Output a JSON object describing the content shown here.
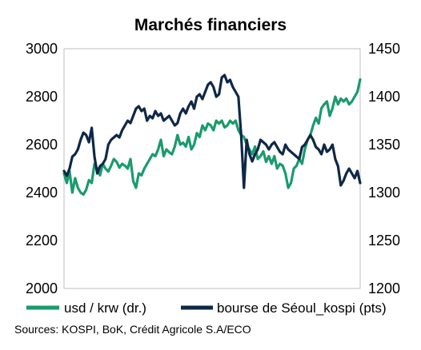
{
  "chart_data": {
    "type": "line",
    "title": "Marchés financiers",
    "source": "Sources: KOSPI, BoK, Crédit Agricole S.A/ECO",
    "left_axis": {
      "min": 2000,
      "max": 3000,
      "ticks": [
        "3000",
        "2800",
        "2600",
        "2400",
        "2200",
        "2000"
      ]
    },
    "right_axis": {
      "min": 1200,
      "max": 1450,
      "ticks": [
        "1450",
        "1400",
        "1350",
        "1300",
        "1250",
        "1200"
      ]
    },
    "grid": false,
    "legend_position": "bottom",
    "series": [
      {
        "name": "usd / krw (dr.)",
        "axis": "right",
        "color": "#1a9b6c",
        "values": [
          1320,
          1310,
          1322,
          1300,
          1315,
          1305,
          1300,
          1298,
          1303,
          1313,
          1310,
          1330,
          1325,
          1318,
          1330,
          1325,
          1322,
          1328,
          1335,
          1332,
          1326,
          1330,
          1328,
          1325,
          1335,
          1312,
          1305,
          1320,
          1318,
          1325,
          1330,
          1335,
          1340,
          1338,
          1345,
          1355,
          1338,
          1345,
          1342,
          1340,
          1348,
          1360,
          1350,
          1352,
          1348,
          1358,
          1345,
          1350,
          1362,
          1358,
          1370,
          1365,
          1372,
          1370,
          1365,
          1375,
          1372,
          1375,
          1368,
          1370,
          1375,
          1372,
          1375,
          1365,
          1360,
          1358,
          1350,
          1345,
          1340,
          1348,
          1335,
          1338,
          1343,
          1332,
          1338,
          1330,
          1338,
          1325,
          1330,
          1328,
          1320,
          1305,
          1310,
          1325,
          1328,
          1335,
          1330,
          1345,
          1355,
          1360,
          1370,
          1378,
          1372,
          1388,
          1392,
          1395,
          1380,
          1388,
          1400,
          1392,
          1398,
          1395,
          1398,
          1392,
          1395,
          1400,
          1405,
          1418
        ]
      },
      {
        "name": "bourse de Séoul_kospi (pts)",
        "axis": "left",
        "color": "#0f2847",
        "values": [
          2490,
          2470,
          2500,
          2550,
          2560,
          2580,
          2620,
          2650,
          2640,
          2610,
          2670,
          2550,
          2480,
          2510,
          2520,
          2540,
          2600,
          2620,
          2630,
          2640,
          2630,
          2660,
          2680,
          2700,
          2690,
          2720,
          2750,
          2760,
          2740,
          2750,
          2700,
          2720,
          2710,
          2740,
          2720,
          2730,
          2700,
          2710,
          2720,
          2700,
          2680,
          2690,
          2730,
          2750,
          2730,
          2760,
          2780,
          2750,
          2800,
          2810,
          2790,
          2820,
          2850,
          2860,
          2840,
          2800,
          2810,
          2880,
          2890,
          2860,
          2870,
          2840,
          2820,
          2800,
          2640,
          2420,
          2620,
          2560,
          2530,
          2560,
          2580,
          2620,
          2610,
          2600,
          2580,
          2600,
          2610,
          2590,
          2570,
          2560,
          2600,
          2580,
          2570,
          2560,
          2550,
          2540,
          2590,
          2600,
          2620,
          2640,
          2620,
          2590,
          2580,
          2560,
          2600,
          2570,
          2580,
          2600,
          2540,
          2510,
          2430,
          2450,
          2480,
          2500,
          2480,
          2460,
          2490,
          2440
        ]
      }
    ]
  }
}
